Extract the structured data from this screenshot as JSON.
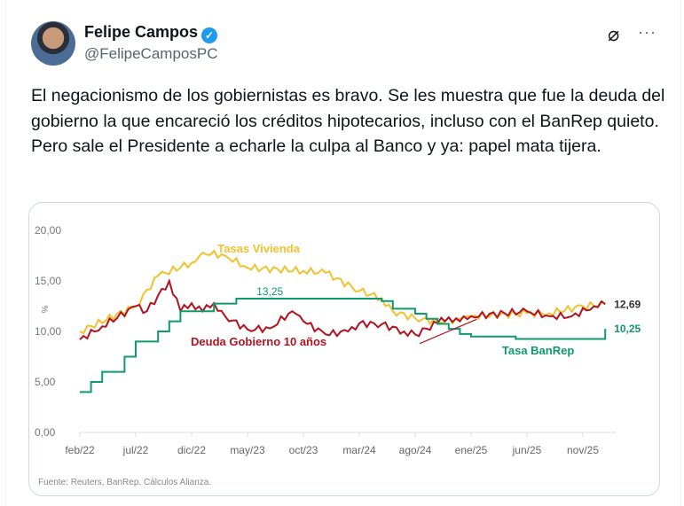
{
  "author": {
    "name": "Felipe Campos",
    "handle": "@FelipeCamposPC",
    "verified": true
  },
  "icons": {
    "grok": "grok-icon",
    "more": "more-icon",
    "verified": "verified-badge-icon"
  },
  "tweet_text": "El negacionismo de los gobiernistas es bravo. Se les muestra que fue la deuda del gobierno la que encareció los créditos hipotecarios, incluso con el BanRep quieto. Pero sale el Presidente a echarle la culpa al Banco y ya: papel mata tijera.",
  "chart_data": {
    "type": "line",
    "ylabel": "%",
    "ylim": [
      0,
      20
    ],
    "yticks": [
      "0,00",
      "5,00",
      "10,00",
      "15,00",
      "20,00"
    ],
    "xticks": [
      "feb/22",
      "jul/22",
      "dic/22",
      "may/23",
      "oct/23",
      "mar/24",
      "ago/24",
      "ene/25",
      "jun/25",
      "nov/25"
    ],
    "x_start": "feb/22",
    "source": "Fuente: Reuters, BanRep. Cálculos Alianza.",
    "annotations": {
      "peak_banrep": "13,25",
      "last_deuda": "12,69",
      "last_banrep": "10,25"
    },
    "series": [
      {
        "name": "Tasas Vivienda",
        "color": "#f2c12e",
        "months": [
          0,
          5,
          7,
          10,
          11,
          13,
          15,
          20,
          22,
          25,
          27,
          28,
          30,
          32,
          34,
          35,
          40,
          42,
          45,
          47
        ],
        "values": [
          10,
          12.5,
          15.5,
          16.8,
          17.8,
          17.5,
          16.3,
          16,
          15.8,
          14,
          13.3,
          12,
          11.3,
          11,
          11.2,
          11.5,
          11.8,
          11.8,
          12.5,
          12.7
        ]
      },
      {
        "name": "Deuda Gobierno 10 años",
        "color": "#b3121f",
        "months": [
          0,
          2,
          5,
          6,
          8,
          9,
          10,
          11,
          12,
          13,
          15,
          17,
          19,
          20,
          22,
          24,
          25,
          27,
          29,
          30,
          32,
          33,
          34,
          35,
          40,
          42,
          44,
          46,
          47
        ],
        "values": [
          9.2,
          10.5,
          12.5,
          12,
          15,
          12,
          12.8,
          12,
          12.8,
          11.5,
          10.2,
          10.3,
          12,
          11,
          9.7,
          10,
          10.8,
          10.7,
          10,
          9.7,
          10.8,
          11.4,
          11,
          11.5,
          12,
          11.5,
          11.5,
          12.5,
          12.69
        ]
      },
      {
        "name": "Tasa BanRep",
        "color": "#0f9a6a",
        "step": true,
        "months": [
          0,
          1,
          2,
          4,
          5,
          7,
          8,
          9,
          11,
          12,
          14,
          26,
          27,
          28,
          30,
          31,
          32,
          33,
          34,
          35,
          37,
          39,
          46,
          47
        ],
        "values": [
          4,
          5,
          6,
          7.5,
          9,
          10,
          11,
          12,
          12,
          12.75,
          13.25,
          13.25,
          13,
          12.25,
          11.75,
          11.25,
          10.75,
          10.25,
          9.75,
          9.5,
          9.5,
          9.25,
          9.25,
          10.25
        ]
      }
    ]
  }
}
